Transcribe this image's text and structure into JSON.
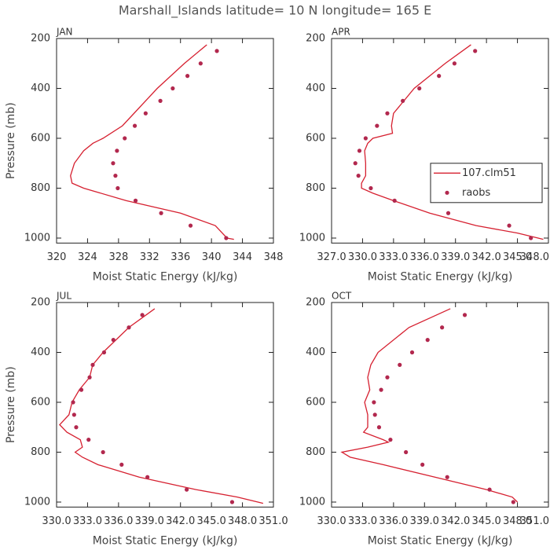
{
  "title": "Marshall_Islands  latitude= 10 N longitude= 165 E",
  "chart_data": [
    {
      "type": "scatter",
      "title": "JAN",
      "x_label": "Moist Static Energy (kJ/kg)",
      "y_label": "Pressure (mb)",
      "xlim": [
        320,
        348
      ],
      "xticks": [
        320,
        324,
        328,
        332,
        336,
        340,
        344,
        348
      ],
      "ylim": [
        1020,
        200
      ],
      "yticks": [
        200,
        400,
        600,
        800,
        1000
      ],
      "series": [
        {
          "style": "line",
          "color": "#d62030",
          "x": [
            339.4,
            336.5,
            333.0,
            330.0,
            328.5,
            326.0,
            324.7,
            323.5,
            322.3,
            321.8,
            322.0,
            323.5,
            329.0,
            336.0,
            340.5,
            342.0,
            342.9
          ],
          "y": [
            225,
            300,
            400,
            500,
            550,
            600,
            620,
            650,
            700,
            750,
            780,
            800,
            850,
            900,
            950,
            1000,
            1005
          ]
        },
        {
          "style": "marker",
          "color": "#b2284e",
          "x": [
            340.7,
            338.6,
            336.9,
            335.0,
            333.4,
            331.5,
            330.1,
            328.8,
            327.8,
            327.3,
            327.6,
            327.9,
            330.2,
            333.5,
            337.3,
            341.9
          ],
          "y": [
            250,
            300,
            350,
            400,
            450,
            500,
            550,
            600,
            650,
            700,
            750,
            800,
            850,
            900,
            950,
            1000
          ]
        }
      ]
    },
    {
      "type": "scatter",
      "title": "APR",
      "x_label": "Moist Static Energy (kJ/kg)",
      "xlim": [
        327,
        348
      ],
      "xticks": [
        {
          "value": 327,
          "label": "327.0"
        },
        {
          "value": 330,
          "label": "330.0"
        },
        {
          "value": 333,
          "label": "333.0"
        },
        {
          "value": 336,
          "label": "336.0"
        },
        {
          "value": 339,
          "label": "339.0"
        },
        {
          "value": 342,
          "label": "342.0"
        },
        {
          "value": 345,
          "label": "345.0"
        },
        {
          "value": 348,
          "label": "348.0"
        }
      ],
      "ylim": [
        1020,
        200
      ],
      "yticks": [
        200,
        400,
        600,
        800,
        1000
      ],
      "legend": "center right",
      "series": [
        {
          "name": "107.clm51",
          "style": "line",
          "color": "#d62030",
          "x": [
            340.5,
            338.0,
            335.0,
            334.0,
            333.0,
            332.8,
            332.9,
            331.0,
            330.5,
            330.2,
            330.3,
            330.3,
            329.9,
            329.9,
            331.0,
            333.0,
            336.5,
            341.0,
            345.0,
            347.0,
            347.5
          ],
          "y": [
            225,
            300,
            400,
            450,
            500,
            550,
            580,
            600,
            620,
            650,
            700,
            750,
            780,
            800,
            820,
            850,
            900,
            950,
            980,
            1000,
            1005
          ]
        },
        {
          "name": "raobs",
          "style": "marker",
          "color": "#b2284e",
          "x": [
            340.9,
            338.9,
            337.4,
            335.5,
            333.9,
            332.4,
            331.4,
            330.3,
            329.7,
            329.3,
            329.6,
            330.8,
            333.1,
            338.3,
            344.2,
            346.3
          ],
          "y": [
            250,
            300,
            350,
            400,
            450,
            500,
            550,
            600,
            650,
            700,
            750,
            800,
            850,
            900,
            950,
            1000
          ]
        }
      ]
    },
    {
      "type": "scatter",
      "title": "JUL",
      "x_label": "Moist Static Energy (kJ/kg)",
      "y_label": "Pressure (mb)",
      "xlim": [
        330,
        351
      ],
      "xticks": [
        {
          "value": 330,
          "label": "330.0"
        },
        {
          "value": 333,
          "label": "333.0"
        },
        {
          "value": 336,
          "label": "336.0"
        },
        {
          "value": 339,
          "label": "339.0"
        },
        {
          "value": 342,
          "label": "342.0"
        },
        {
          "value": 345,
          "label": "345.0"
        },
        {
          "value": 348,
          "label": "348.0"
        },
        {
          "value": 351,
          "label": "351.0"
        }
      ],
      "ylim": [
        1020,
        200
      ],
      "yticks": [
        200,
        400,
        600,
        800,
        1000
      ],
      "series": [
        {
          "style": "line",
          "color": "#d62030",
          "x": [
            339.5,
            337.0,
            334.5,
            333.5,
            333.2,
            332.2,
            331.5,
            331.2,
            330.3,
            331.0,
            332.3,
            332.5,
            331.8,
            332.5,
            334.0,
            338.0,
            343.5,
            347.5,
            349.5,
            350.0
          ],
          "y": [
            225,
            300,
            400,
            450,
            500,
            550,
            600,
            650,
            690,
            720,
            750,
            780,
            800,
            820,
            850,
            900,
            950,
            980,
            1000,
            1005
          ]
        },
        {
          "style": "marker",
          "color": "#b2284e",
          "x": [
            338.3,
            337.0,
            335.5,
            334.6,
            333.5,
            333.2,
            332.4,
            331.6,
            331.7,
            331.9,
            333.1,
            334.5,
            336.3,
            338.8,
            342.6,
            347.0
          ],
          "y": [
            250,
            300,
            350,
            400,
            450,
            500,
            550,
            600,
            650,
            700,
            750,
            800,
            850,
            900,
            950,
            1000
          ]
        }
      ]
    },
    {
      "type": "scatter",
      "title": "OCT",
      "x_label": "Moist Static Energy (kJ/kg)",
      "xlim": [
        330,
        351
      ],
      "xticks": [
        {
          "value": 330,
          "label": "330.0"
        },
        {
          "value": 333,
          "label": "333.0"
        },
        {
          "value": 336,
          "label": "336.0"
        },
        {
          "value": 339,
          "label": "339.0"
        },
        {
          "value": 342,
          "label": "342.0"
        },
        {
          "value": 345,
          "label": "345.0"
        },
        {
          "value": 348,
          "label": "348.0"
        },
        {
          "value": 351,
          "label": "351.0"
        }
      ],
      "ylim": [
        1020,
        200
      ],
      "yticks": [
        200,
        400,
        600,
        800,
        1000
      ],
      "series": [
        {
          "style": "line",
          "color": "#d62030",
          "x": [
            341.5,
            337.5,
            334.5,
            333.8,
            333.5,
            333.7,
            333.2,
            333.5,
            333.5,
            333.1,
            335.0,
            335.5,
            333.5,
            331.0,
            331.8,
            335.0,
            340.0,
            345.0,
            347.5,
            348.0
          ],
          "y": [
            225,
            300,
            400,
            450,
            500,
            550,
            600,
            650,
            700,
            720,
            750,
            760,
            780,
            800,
            820,
            850,
            900,
            950,
            980,
            1000
          ]
        },
        {
          "style": "marker",
          "color": "#b2284e",
          "x": [
            342.9,
            340.7,
            339.3,
            337.8,
            336.6,
            335.4,
            334.8,
            334.1,
            334.2,
            334.6,
            335.7,
            337.2,
            338.8,
            341.2,
            345.3,
            347.6
          ],
          "y": [
            250,
            300,
            350,
            400,
            450,
            500,
            550,
            600,
            650,
            700,
            750,
            800,
            850,
            900,
            950,
            1000
          ]
        }
      ]
    }
  ]
}
